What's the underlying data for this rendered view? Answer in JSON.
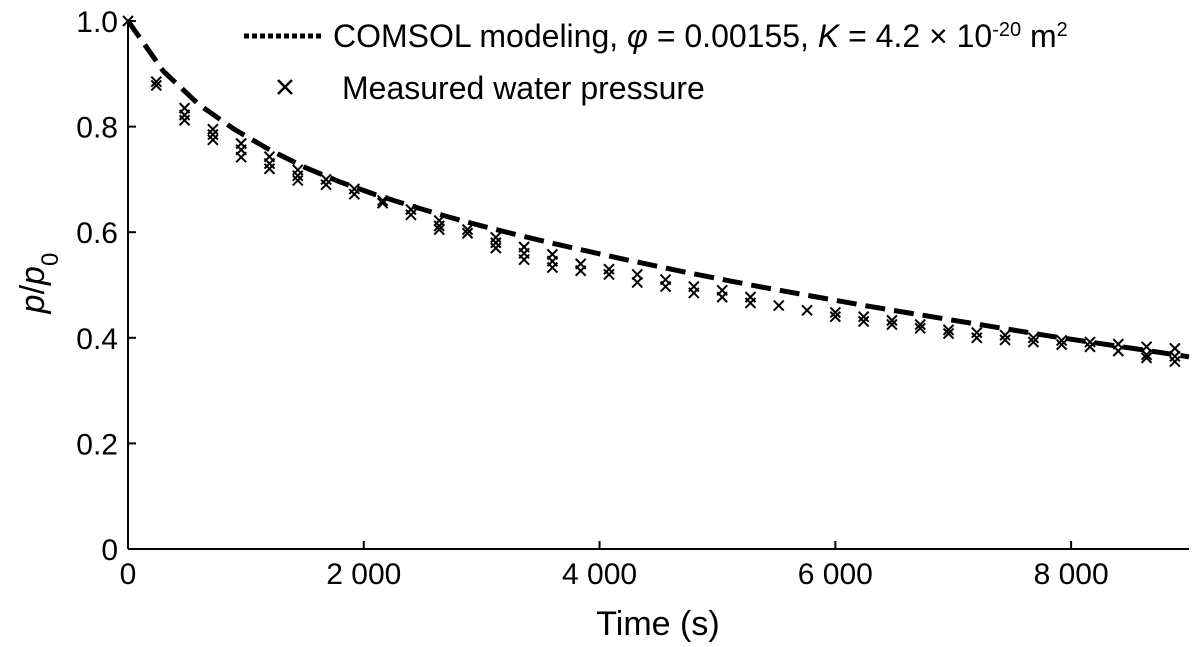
{
  "chart_data": {
    "type": "line",
    "title": "",
    "xlabel": "Time (s)",
    "ylabel": {
      "p1": "p",
      "slash": "/",
      "p2": "p",
      "sub": "0"
    },
    "xlim": [
      0,
      9000
    ],
    "ylim": [
      0,
      1.0
    ],
    "x_ticks": [
      0,
      2000,
      4000,
      6000,
      8000
    ],
    "x_tick_labels": [
      "0",
      "2 000",
      "4 000",
      "6 000",
      "8 000"
    ],
    "y_ticks": [
      0,
      0.2,
      0.4,
      0.6,
      0.8,
      1.0
    ],
    "y_tick_labels": [
      "0",
      "0.2",
      "0.4",
      "0.6",
      "0.8",
      "1.0"
    ],
    "grid": false,
    "legend_position": "top-right",
    "legend": {
      "model": {
        "prefix": "COMSOL modeling, ",
        "phi_symbol": "φ",
        "phi_eq": " = 0.00155, ",
        "k_symbol": "K",
        "k_eq": " = 4.2 × 10",
        "k_exp": "-20",
        "k_unit": " m",
        "k_unit_exp": "2"
      },
      "measured": "Measured water pressure"
    },
    "series": [
      {
        "name": "COMSOL modeling",
        "style": "dashed-line",
        "x": [
          0,
          300,
          600,
          900,
          1200,
          1500,
          1800,
          2100,
          2400,
          2700,
          3000,
          3300,
          3600,
          3900,
          4200,
          4500,
          4800,
          5100,
          5400,
          5700,
          6000,
          6300,
          6600,
          6900,
          7200,
          7500,
          7800,
          8100,
          8400,
          8700,
          9000
        ],
        "y": [
          1.0,
          0.905,
          0.842,
          0.795,
          0.756,
          0.723,
          0.695,
          0.671,
          0.65,
          0.63,
          0.612,
          0.595,
          0.579,
          0.564,
          0.549,
          0.535,
          0.521,
          0.508,
          0.495,
          0.483,
          0.471,
          0.459,
          0.448,
          0.437,
          0.426,
          0.415,
          0.404,
          0.394,
          0.384,
          0.374,
          0.364
        ]
      },
      {
        "name": "Measured water pressure",
        "style": "x-markers",
        "points": [
          [
            0,
            1.0
          ],
          [
            240,
            0.885
          ],
          [
            240,
            0.878
          ],
          [
            480,
            0.835
          ],
          [
            480,
            0.822
          ],
          [
            480,
            0.812
          ],
          [
            720,
            0.795
          ],
          [
            720,
            0.785
          ],
          [
            720,
            0.775
          ],
          [
            960,
            0.768
          ],
          [
            960,
            0.756
          ],
          [
            960,
            0.742
          ],
          [
            1200,
            0.743
          ],
          [
            1200,
            0.73
          ],
          [
            1200,
            0.72
          ],
          [
            1440,
            0.718
          ],
          [
            1440,
            0.707
          ],
          [
            1440,
            0.698
          ],
          [
            1680,
            0.7
          ],
          [
            1680,
            0.69
          ],
          [
            1920,
            0.682
          ],
          [
            1920,
            0.672
          ],
          [
            2160,
            0.66
          ],
          [
            2160,
            0.655
          ],
          [
            2400,
            0.643
          ],
          [
            2400,
            0.633
          ],
          [
            2640,
            0.622
          ],
          [
            2640,
            0.612
          ],
          [
            2640,
            0.605
          ],
          [
            2880,
            0.605
          ],
          [
            2880,
            0.598
          ],
          [
            3120,
            0.59
          ],
          [
            3120,
            0.58
          ],
          [
            3120,
            0.57
          ],
          [
            3360,
            0.572
          ],
          [
            3360,
            0.56
          ],
          [
            3360,
            0.548
          ],
          [
            3600,
            0.558
          ],
          [
            3600,
            0.545
          ],
          [
            3600,
            0.533
          ],
          [
            3840,
            0.54
          ],
          [
            3840,
            0.527
          ],
          [
            4080,
            0.53
          ],
          [
            4080,
            0.52
          ],
          [
            4320,
            0.52
          ],
          [
            4320,
            0.505
          ],
          [
            4560,
            0.51
          ],
          [
            4560,
            0.497
          ],
          [
            4800,
            0.497
          ],
          [
            4800,
            0.485
          ],
          [
            5040,
            0.49
          ],
          [
            5040,
            0.477
          ],
          [
            5280,
            0.477
          ],
          [
            5280,
            0.466
          ],
          [
            5520,
            0.461
          ],
          [
            5760,
            0.452
          ],
          [
            6000,
            0.448
          ],
          [
            6000,
            0.44
          ],
          [
            6240,
            0.44
          ],
          [
            6240,
            0.431
          ],
          [
            6480,
            0.433
          ],
          [
            6480,
            0.425
          ],
          [
            6720,
            0.425
          ],
          [
            6720,
            0.418
          ],
          [
            6960,
            0.415
          ],
          [
            6960,
            0.408
          ],
          [
            7200,
            0.41
          ],
          [
            7200,
            0.4
          ],
          [
            7440,
            0.405
          ],
          [
            7440,
            0.396
          ],
          [
            7680,
            0.4
          ],
          [
            7680,
            0.392
          ],
          [
            7920,
            0.395
          ],
          [
            7920,
            0.387
          ],
          [
            8160,
            0.392
          ],
          [
            8160,
            0.383
          ],
          [
            8400,
            0.388
          ],
          [
            8400,
            0.375
          ],
          [
            8640,
            0.383
          ],
          [
            8640,
            0.368
          ],
          [
            8640,
            0.362
          ],
          [
            8880,
            0.38
          ],
          [
            8880,
            0.365
          ],
          [
            8880,
            0.355
          ]
        ]
      }
    ]
  }
}
